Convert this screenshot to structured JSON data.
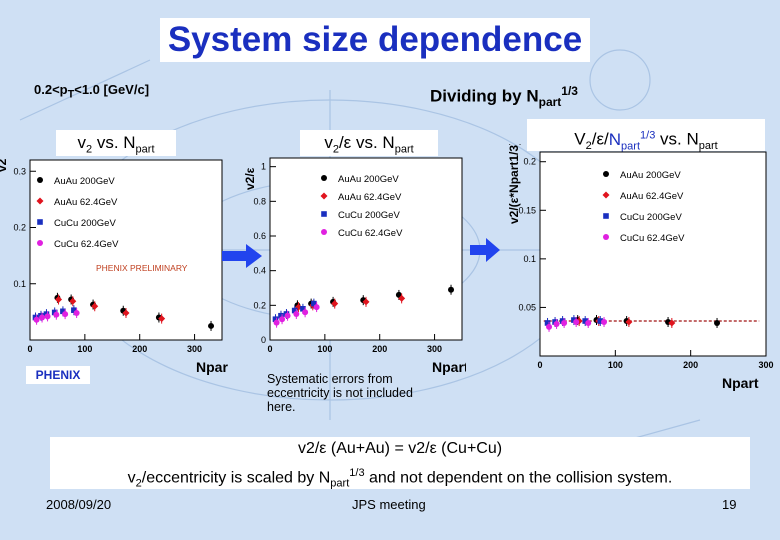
{
  "slide": {
    "title": "System size dependence",
    "pt_range_label": "0.2<p",
    "pt_range_sub": "T",
    "pt_range_rest": "<1.0 [GeV/c]",
    "dividing_label": "Dividing by N",
    "dividing_sub": "part",
    "dividing_sup": "1/3",
    "systematic_note": "Systematic errors from eccentricity is not included here.",
    "caption_line1": "v2/ε (Au+Au) = v2/ε (Cu+Cu)",
    "caption_line2_a": "v",
    "caption_line2_b": "2",
    "caption_line2_c": "/eccentricity  is scaled by N",
    "caption_line2_d": "part",
    "caption_line2_e": "1/3",
    "caption_line2_f": " and not dependent on the collision system.",
    "date": "2008/09/20",
    "meeting": "JPS meeting",
    "page_number": "19",
    "phenix_logo": "PHENIX",
    "preliminary": "PHENIX PRELIMINARY"
  },
  "colors": {
    "title": "#1a2fbf",
    "auau200": "#000000",
    "auau62": "#e0141e",
    "cucu200": "#1a2fbf",
    "cucu62": "#e020e0",
    "fit": "#a01010"
  },
  "chart_data": [
    {
      "type": "scatter",
      "panel_label": "v2 vs. Npart",
      "ylabel": "v2",
      "xlabel": "Npart",
      "xlim": [
        0,
        350
      ],
      "ylim": [
        0,
        0.32
      ],
      "x_ticks": [
        0,
        100,
        200,
        300
      ],
      "y_ticks": [
        0.1,
        0.2,
        0.3
      ],
      "series": [
        {
          "name": "AuAu 200GeV",
          "x": [
            50,
            75,
            115,
            170,
            235,
            330
          ],
          "y": [
            0.075,
            0.072,
            0.063,
            0.052,
            0.04,
            0.025
          ]
        },
        {
          "name": "AuAu 62.4GeV",
          "x": [
            52,
            78,
            118,
            175,
            240
          ],
          "y": [
            0.072,
            0.069,
            0.06,
            0.048,
            0.038
          ]
        },
        {
          "name": "CuCu 200GeV",
          "x": [
            10,
            20,
            30,
            45,
            60,
            80
          ],
          "y": [
            0.04,
            0.043,
            0.046,
            0.049,
            0.051,
            0.053
          ]
        },
        {
          "name": "CuCu 62.4GeV",
          "x": [
            12,
            22,
            32,
            48,
            64,
            85
          ],
          "y": [
            0.036,
            0.04,
            0.042,
            0.045,
            0.046,
            0.048
          ]
        }
      ]
    },
    {
      "type": "scatter",
      "panel_label": "v2/ε vs. Npart",
      "ylabel": "v2/ε",
      "xlabel": "Npart",
      "xlim": [
        0,
        350
      ],
      "ylim": [
        0,
        1.05
      ],
      "x_ticks": [
        0,
        100,
        200,
        300
      ],
      "y_ticks": [
        0,
        0.2,
        0.4,
        0.6,
        0.8,
        1
      ],
      "series": [
        {
          "name": "AuAu 200GeV",
          "x": [
            50,
            75,
            115,
            170,
            235,
            330
          ],
          "y": [
            0.2,
            0.21,
            0.22,
            0.23,
            0.26,
            0.29
          ]
        },
        {
          "name": "AuAu 62.4GeV",
          "x": [
            52,
            78,
            118,
            175,
            240
          ],
          "y": [
            0.19,
            0.2,
            0.21,
            0.22,
            0.24
          ]
        },
        {
          "name": "CuCu 200GeV",
          "x": [
            10,
            20,
            30,
            45,
            60,
            80
          ],
          "y": [
            0.12,
            0.14,
            0.15,
            0.17,
            0.18,
            0.21
          ]
        },
        {
          "name": "CuCu 62.4GeV",
          "x": [
            12,
            22,
            32,
            48,
            64,
            85
          ],
          "y": [
            0.1,
            0.12,
            0.14,
            0.15,
            0.16,
            0.19
          ]
        }
      ]
    },
    {
      "type": "scatter",
      "panel_label": "V2/ε/Npart1/3 vs. Npart",
      "ylabel": "v2/(ε*Npart1/3)",
      "xlabel": "Npart",
      "xlim": [
        0,
        300
      ],
      "ylim": [
        0,
        0.21
      ],
      "x_ticks": [
        0,
        100,
        200,
        300
      ],
      "y_ticks": [
        0.05,
        0.1,
        0.15,
        0.2
      ],
      "series": [
        {
          "name": "AuAu 200GeV",
          "x": [
            50,
            75,
            115,
            170,
            235
          ],
          "y": [
            0.037,
            0.037,
            0.036,
            0.035,
            0.034
          ]
        },
        {
          "name": "AuAu 62.4GeV",
          "x": [
            52,
            78,
            118,
            175
          ],
          "y": [
            0.036,
            0.036,
            0.035,
            0.034
          ]
        },
        {
          "name": "CuCu 200GeV",
          "x": [
            10,
            20,
            30,
            45,
            60,
            80
          ],
          "y": [
            0.034,
            0.035,
            0.036,
            0.037,
            0.036,
            0.036
          ]
        },
        {
          "name": "CuCu 62.4GeV",
          "x": [
            12,
            22,
            32,
            48,
            64,
            85
          ],
          "y": [
            0.03,
            0.033,
            0.034,
            0.035,
            0.034,
            0.035
          ]
        }
      ],
      "fit_y": 0.036
    }
  ]
}
